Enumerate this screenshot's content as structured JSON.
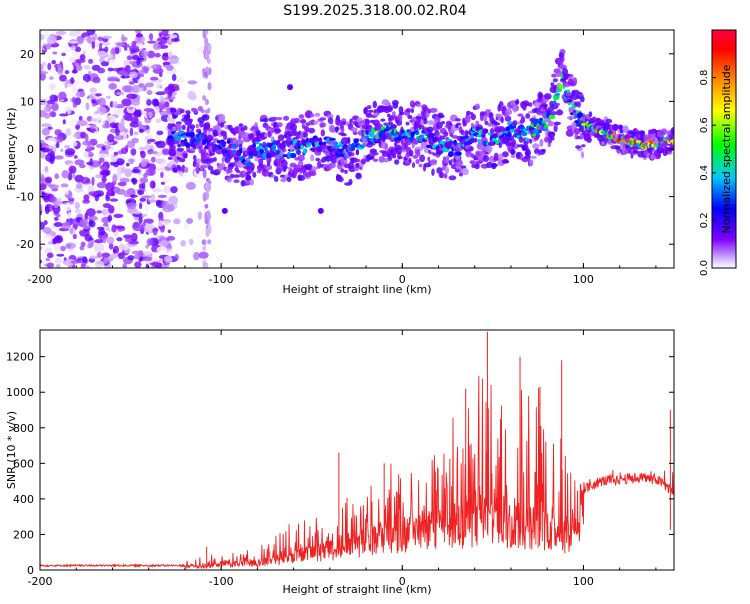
{
  "figure": {
    "title": "S199.2025.318.00.02.R04"
  },
  "chart_data": [
    {
      "type": "heatmap",
      "name": "spectrogram",
      "xlabel": "Height of straight line (km)",
      "ylabel": "Frequency (Hz)",
      "xlim": [
        -200,
        150
      ],
      "ylim": [
        -25,
        25
      ],
      "xticks": [
        -200,
        -100,
        0,
        100
      ],
      "yticks": [
        -20,
        -10,
        0,
        10,
        20
      ],
      "colorbar": {
        "label": "Normalized spectral amplitude",
        "range": [
          0,
          1
        ],
        "ticks": [
          0.0,
          0.2,
          0.4,
          0.6,
          0.8
        ],
        "tick_labels": [
          "0.0",
          "0.2",
          "0.4",
          "0.6",
          "0.8"
        ],
        "colors": [
          "#ffffff",
          "#d0b0ff",
          "#8000ff",
          "#0000ff",
          "#00c8ff",
          "#00ff00",
          "#ffff00",
          "#ff8000",
          "#ff0000",
          "#ff0040"
        ]
      },
      "noise_region": {
        "x_range": [
          -200,
          -125
        ],
        "description_amplitude": 0.15
      },
      "ridge": {
        "x": [
          -128,
          -120,
          -110,
          -100,
          -90,
          -85,
          -80,
          -70,
          -60,
          -50,
          -40,
          -30,
          -20,
          -10,
          0,
          10,
          20,
          30,
          40,
          50,
          60,
          70,
          80,
          85,
          88,
          90,
          95,
          100,
          110,
          120,
          130,
          140,
          150
        ],
        "freq": [
          2,
          2,
          2,
          1,
          -1,
          -2,
          0,
          0,
          0,
          1,
          1,
          -1,
          2,
          4,
          3,
          3,
          1,
          0,
          3,
          2,
          4,
          3,
          6,
          10,
          15,
          12,
          8,
          5,
          4,
          2,
          1,
          1,
          2
        ],
        "amplitude": [
          0.3,
          0.35,
          0.3,
          0.3,
          0.35,
          0.3,
          0.35,
          0.35,
          0.4,
          0.4,
          0.4,
          0.35,
          0.45,
          0.5,
          0.45,
          0.45,
          0.4,
          0.4,
          0.45,
          0.45,
          0.45,
          0.45,
          0.5,
          0.5,
          0.55,
          0.5,
          0.6,
          0.7,
          0.8,
          0.9,
          0.95,
          0.95,
          0.7
        ]
      }
    },
    {
      "type": "line",
      "name": "snr",
      "xlabel": "Height of straight line (km)",
      "ylabel": "SNR (10 * v/v)",
      "xlim": [
        -200,
        150
      ],
      "ylim": [
        0,
        1350
      ],
      "xticks": [
        -200,
        -100,
        0,
        100
      ],
      "yticks": [
        0,
        200,
        400,
        600,
        800,
        1000,
        1200
      ],
      "color": "#ee2222",
      "envelope": {
        "x": [
          -200,
          -150,
          -120,
          -110,
          -100,
          -90,
          -80,
          -70,
          -60,
          -50,
          -40,
          -30,
          -20,
          -10,
          0,
          10,
          20,
          30,
          40,
          45,
          50,
          60,
          70,
          80,
          90,
          95,
          100,
          110,
          120,
          130,
          140,
          145,
          150
        ],
        "baseline": [
          25,
          25,
          25,
          30,
          40,
          50,
          60,
          80,
          120,
          140,
          170,
          200,
          240,
          280,
          300,
          330,
          350,
          380,
          400,
          420,
          400,
          380,
          380,
          360,
          300,
          380,
          450,
          500,
          510,
          520,
          510,
          480,
          430
        ],
        "peak": [
          40,
          40,
          50,
          100,
          80,
          120,
          150,
          250,
          300,
          330,
          420,
          500,
          550,
          600,
          650,
          700,
          800,
          900,
          1000,
          1340,
          1100,
          1200,
          1150,
          1000,
          900,
          700,
          600,
          580,
          570,
          560,
          570,
          900,
          750
        ]
      },
      "spikes": [
        {
          "x": 47,
          "y": 1340
        },
        {
          "x": 65,
          "y": 1200
        },
        {
          "x": 88,
          "y": 1180
        },
        {
          "x": 76,
          "y": 1030
        },
        {
          "x": 35,
          "y": 1020
        },
        {
          "x": 148,
          "y": 900
        },
        {
          "x": -35,
          "y": 660
        },
        {
          "x": -10,
          "y": 600
        },
        {
          "x": -108,
          "y": 130
        }
      ]
    }
  ]
}
